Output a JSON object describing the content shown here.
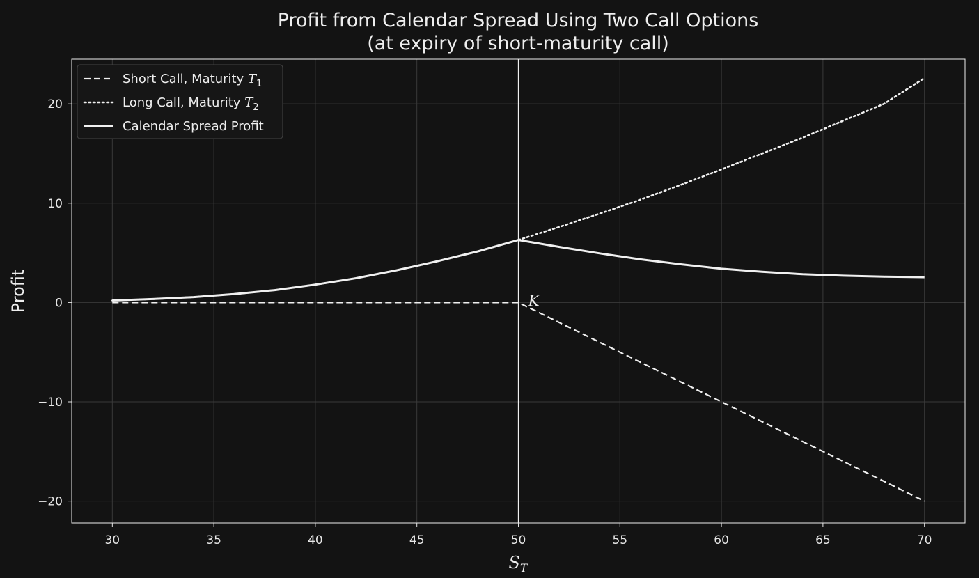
{
  "chart_data": {
    "type": "line",
    "title": "Profit from Calendar Spread Using Two Call Options",
    "subtitle": "(at expiry of short-maturity call)",
    "xlabel": "S_T",
    "ylabel": "Profit",
    "xlim": [
      28,
      72
    ],
    "ylim": [
      -22.2,
      24.5
    ],
    "xticks": [
      30,
      35,
      40,
      45,
      50,
      55,
      60,
      65,
      70
    ],
    "yticks": [
      -20,
      -10,
      0,
      10,
      20
    ],
    "xtick_labels": [
      "30",
      "35",
      "40",
      "45",
      "50",
      "55",
      "60",
      "65",
      "70"
    ],
    "ytick_labels": [
      "−20",
      "−10",
      "0",
      "10",
      "20"
    ],
    "grid": true,
    "legend_position": "top-left",
    "vline": {
      "x": 50,
      "label": "K"
    },
    "series": [
      {
        "name": "Short Call, Maturity T1",
        "legend_main": "Short Call, Maturity T",
        "legend_sub": "1",
        "style": "dashed",
        "x": [
          30,
          50,
          70
        ],
        "y": [
          0,
          0,
          -20
        ]
      },
      {
        "name": "Long Call, Maturity T2",
        "legend_main": "Long Call, Maturity T",
        "legend_sub": "2",
        "style": "dotted",
        "x": [
          30,
          32,
          34,
          36,
          38,
          40,
          42,
          44,
          46,
          48,
          50,
          52,
          54,
          56,
          58,
          60,
          62,
          64,
          66,
          68,
          70
        ],
        "y": [
          0.2,
          0.35,
          0.55,
          0.85,
          1.25,
          1.8,
          2.45,
          3.25,
          4.15,
          5.15,
          6.3,
          7.6,
          8.95,
          10.35,
          11.85,
          13.4,
          15.0,
          16.6,
          18.3,
          20.0,
          22.6
        ]
      },
      {
        "name": "Calendar Spread Profit",
        "legend_main": "Calendar Spread Profit",
        "legend_sub": "",
        "style": "solid",
        "x": [
          30,
          32,
          34,
          36,
          38,
          40,
          42,
          44,
          46,
          48,
          50,
          52,
          54,
          56,
          58,
          60,
          62,
          64,
          66,
          68,
          70
        ],
        "y": [
          0.2,
          0.35,
          0.55,
          0.85,
          1.25,
          1.8,
          2.45,
          3.25,
          4.15,
          5.15,
          6.3,
          5.6,
          4.95,
          4.35,
          3.85,
          3.4,
          3.1,
          2.85,
          2.7,
          2.6,
          2.55
        ]
      }
    ],
    "colors": {
      "background": "#131313",
      "foreground": "#f0f0f0",
      "grid": "#3a3a3a"
    }
  }
}
